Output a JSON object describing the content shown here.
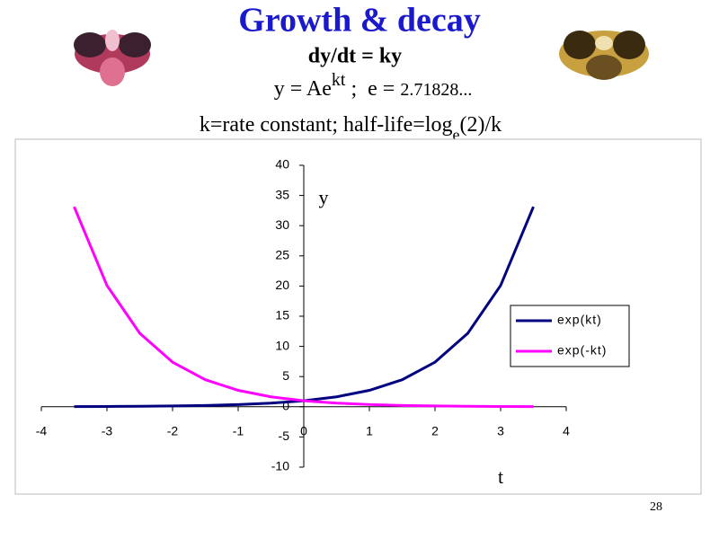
{
  "header": {
    "title": "Growth & decay",
    "equation": "dy/dt = ky",
    "formula": [
      "y = Ae",
      "kt",
      " ;  e = ",
      "2.71828..."
    ],
    "note": [
      "k=rate constant; half-life=log",
      "e",
      "(2)/k"
    ]
  },
  "page_number": "28",
  "chart_data": {
    "type": "line",
    "x_label": "t",
    "y_label": "y",
    "x": [
      -3.5,
      -3,
      -2.5,
      -2,
      -1.5,
      -1,
      -0.5,
      0,
      0.5,
      1,
      1.5,
      2,
      2.5,
      3,
      3.5
    ],
    "series": [
      {
        "name": "exp(kt)",
        "color": "#000080",
        "values": [
          0.03,
          0.05,
          0.08,
          0.14,
          0.22,
          0.37,
          0.61,
          1,
          1.65,
          2.72,
          4.48,
          7.39,
          12.18,
          20.09,
          33.12
        ]
      },
      {
        "name": "exp(-kt)",
        "color": "#ff00ff",
        "values": [
          33.12,
          20.09,
          12.18,
          7.39,
          4.48,
          2.72,
          1.65,
          1,
          0.61,
          0.37,
          0.22,
          0.14,
          0.08,
          0.05,
          0.03
        ]
      }
    ],
    "xlim": [
      -4,
      4
    ],
    "xticks": [
      -4,
      -3,
      -2,
      -1,
      0,
      1,
      2,
      3,
      4
    ],
    "ylim": [
      -10,
      40
    ],
    "yticks": [
      -10,
      -5,
      0,
      5,
      10,
      15,
      20,
      25,
      30,
      35,
      40
    ],
    "legend": "right"
  }
}
